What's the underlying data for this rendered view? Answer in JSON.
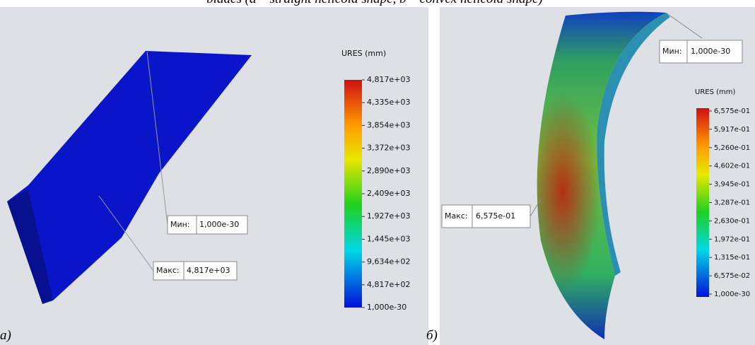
{
  "caption": "blades (a – straight helicoid shape, b – convex helicoid shape)",
  "panel_a": {
    "label": "a)",
    "legend_title": "URES (mm)",
    "legend_labels": [
      "4,817e+03",
      "4,335e+03",
      "3,854e+03",
      "3,372e+03",
      "2,890e+03",
      "2,409e+03",
      "1,927e+03",
      "1,445e+03",
      "9,634e+02",
      "4,817e+02",
      "1,000e-30"
    ],
    "min_label": "Мин:",
    "min_value": "1,000e-30",
    "max_label": "Макс:",
    "max_value": "4,817e+03"
  },
  "panel_b": {
    "label": "б)",
    "legend_title": "URES (mm)",
    "legend_labels": [
      "6,575e-01",
      "5,917e-01",
      "5,260e-01",
      "4,602e-01",
      "3,945e-01",
      "3,287e-01",
      "2,630e-01",
      "1,972e-01",
      "1,315e-01",
      "6,575e-02",
      "1,000e-30"
    ],
    "min_label": "Мин:",
    "min_value": "1,000e-30",
    "max_label": "Макс:",
    "max_value": "6,575e-01"
  }
}
